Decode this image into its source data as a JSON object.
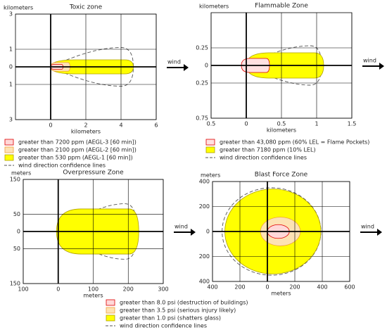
{
  "chart_data": [
    {
      "type": "plume",
      "title": "Toxic zone",
      "xlabel": "kilometers",
      "ylabel": "kilometers",
      "annotation": "wind",
      "xlim": [
        -2,
        6
      ],
      "ylim": [
        -3,
        3
      ],
      "xticks": [
        0,
        2,
        4,
        6
      ],
      "yticks": [
        {
          "value": -3,
          "label": "3"
        },
        {
          "value": -1,
          "label": "1"
        },
        0,
        1,
        3
      ],
      "grid": true,
      "series": [
        {
          "name": "greater than 7200 ppm (AEGL-3 [60 min])",
          "color": "#ffd8d8",
          "edge": "#e00000",
          "values": [
            0,
            0.7,
            0.14
          ]
        },
        {
          "name": "greater than 2100 ppm (AEGL-2 [60 min])",
          "color": "#fde2b4",
          "edge": "#f0a040",
          "values": [
            0,
            1.1,
            0.25
          ]
        },
        {
          "name": "greater than 530 ppm (AEGL-1 [60 min])",
          "color": "#ffff00",
          "edge": "#b0a000",
          "values": [
            0,
            4.7,
            0.4
          ]
        },
        {
          "name": "wind direction confidence lines",
          "color": "none",
          "edge": "#555555",
          "style": "dashed",
          "values": [
            0,
            4.7,
            1.1
          ]
        }
      ]
    },
    {
      "type": "plume",
      "title": "Flammable Zone",
      "xlabel": "kilometers",
      "ylabel": "kilometers",
      "annotation": "wind",
      "xlim": [
        -0.5,
        1.5
      ],
      "ylim": [
        -0.75,
        0.75
      ],
      "xticks": [
        {
          "value": -0.5,
          "label": "0.5"
        },
        0,
        0.5,
        1,
        1.5
      ],
      "yticks": [
        {
          "value": -0.75,
          "label": "0.75"
        },
        {
          "value": -0.25,
          "label": "0.25"
        },
        0,
        0.25
      ],
      "grid": true,
      "series": [
        {
          "name": "greater than 43,080 ppm (60% LEL = Flame Pockets)",
          "color": "#ffe0e0",
          "edge": "#e00000",
          "values": [
            -0.07,
            0.33,
            0.1
          ]
        },
        {
          "name": "greater than 7180 ppm (10% LEL)",
          "color": "#ffff00",
          "edge": "#b0a000",
          "values": [
            0,
            1.1,
            0.18
          ]
        },
        {
          "name": "wind direction confidence lines",
          "color": "none",
          "edge": "#555555",
          "style": "dashed",
          "values": [
            0,
            1.07,
            0.28
          ]
        }
      ]
    },
    {
      "type": "plume",
      "title": "Overpressure Zone",
      "xlabel": "meters",
      "ylabel": "meters",
      "annotation": "wind",
      "xlim": [
        -100,
        300
      ],
      "ylim": [
        -150,
        150
      ],
      "xticks": [
        {
          "value": -100,
          "label": "100"
        },
        0,
        100,
        200,
        300
      ],
      "yticks": [
        {
          "value": -150,
          "label": "150"
        },
        {
          "value": -50,
          "label": "50"
        },
        0,
        50,
        150
      ],
      "grid": true,
      "series": [
        {
          "name": "greater than 8.0 psi (destruction of buildings)",
          "color": "#ffd8d8",
          "edge": "#e00000"
        },
        {
          "name": "greater than 3.5 psi (serious injury likely)",
          "color": "#fde2b4",
          "edge": "#f0a040"
        },
        {
          "name": "greater than 1.0 psi (shatters glass)",
          "color": "#ffff00",
          "edge": "#b0a000",
          "values": [
            -5,
            230,
            65
          ]
        },
        {
          "name": "wind direction confidence lines",
          "color": "none",
          "edge": "#555555",
          "style": "dashed",
          "values": [
            0,
            225,
            80
          ]
        }
      ]
    },
    {
      "type": "blast",
      "title": "Blast Force Zone",
      "xlabel": "meters",
      "ylabel": "meters",
      "annotation": "wind",
      "xlim": [
        -400,
        600
      ],
      "ylim": [
        -400,
        400
      ],
      "xticks": [
        {
          "value": -400,
          "label": "400"
        },
        {
          "value": -200,
          "label": "200"
        },
        0,
        200,
        400,
        600
      ],
      "yticks": [
        {
          "value": -400,
          "label": "400"
        },
        {
          "value": -200,
          "label": "200"
        },
        0,
        200,
        400
      ],
      "grid": true,
      "series": [
        {
          "color": "#ffd8d8",
          "edge": "#e00000",
          "values": [
            0,
            160,
            55
          ]
        },
        {
          "color": "#fde2b4",
          "edge": "#f0a040",
          "values": [
            -50,
            240,
            115
          ]
        },
        {
          "color": "#ffff00",
          "edge": "#b0a000",
          "values": [
            -310,
            390,
            340
          ]
        },
        {
          "color": "none",
          "edge": "#555555",
          "style": "dashed",
          "values": [
            -330,
            390,
            350
          ]
        }
      ]
    }
  ]
}
